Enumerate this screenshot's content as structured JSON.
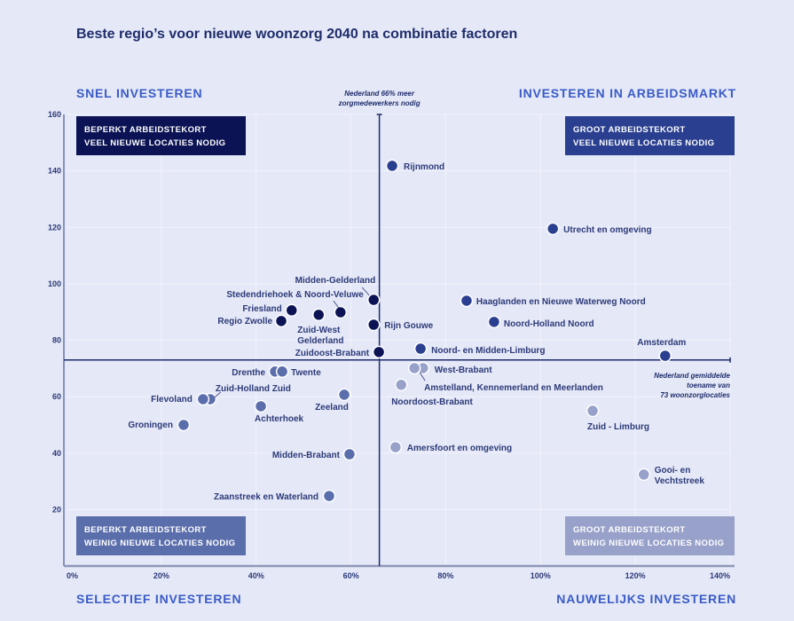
{
  "chart_data": {
    "type": "scatter",
    "title": "Beste regio’s voor nieuwe woonzorg 2040 na combinatie factoren",
    "xlim": [
      0,
      140
    ],
    "ylim": [
      0,
      160
    ],
    "x_ticks": [
      "0%",
      "20%",
      "40%",
      "60%",
      "80%",
      "100%",
      "120%",
      "140%"
    ],
    "x_tick_values": [
      0,
      20,
      40,
      60,
      80,
      100,
      120,
      140
    ],
    "y_ticks": [
      "20",
      "40",
      "60",
      "80",
      "100",
      "120",
      "140",
      "160"
    ],
    "y_tick_values": [
      20,
      40,
      60,
      80,
      100,
      120,
      140,
      160
    ],
    "grid": true,
    "reference_x": {
      "value": 66,
      "label_lines": [
        "Nederland 66% meer",
        "zorgmedewerkers nodig"
      ]
    },
    "reference_y": {
      "value": 73,
      "label_lines": [
        "Nederland gemiddelde",
        "toename van",
        "73 woonzorglocaties"
      ]
    },
    "corner_labels": {
      "top_left": "SNEL INVESTEREN",
      "top_right": "INVESTEREN IN ARBEIDSMARKT",
      "bottom_left": "SELECTIEF INVESTEREN",
      "bottom_right": "NAUWELIJKS INVESTEREN"
    },
    "quadrants": [
      {
        "id": "top-left",
        "lines": [
          "BEPERKT ARBEIDSTEKORT",
          "VEEL NIEUWE LOCATIES NODIG"
        ],
        "color": "#0b1354"
      },
      {
        "id": "top-right",
        "lines": [
          "GROOT ARBEIDSTEKORT",
          "VEEL NIEUWE LOCATIES NODIG"
        ],
        "color": "#2a3f8f"
      },
      {
        "id": "bottom-left",
        "lines": [
          "BEPERKT ARBEIDSTEKORT",
          "WEINIG NIEUWE LOCATIES NODIG"
        ],
        "color": "#5b6eac"
      },
      {
        "id": "bottom-right",
        "lines": [
          "GROOT ARBEIDSTEKORT",
          "WEINIG NIEUWE LOCATIES NODIG"
        ],
        "color": "#97a1c9"
      }
    ],
    "points": [
      {
        "name": "Rijnmond",
        "x": 68.7,
        "y": 141.8
      },
      {
        "name": "Utrecht en omgeving",
        "x": 102.6,
        "y": 119.5
      },
      {
        "name": "Midden-Gelderland",
        "x": 64.8,
        "y": 94.3
      },
      {
        "name": "Stedendriehoek & Noord-Veluwe",
        "x": 57.8,
        "y": 89.9
      },
      {
        "name": "Friesland",
        "x": 47.5,
        "y": 90.6
      },
      {
        "name": "Zuid-West Gelderland",
        "x": 53.2,
        "y": 89.0
      },
      {
        "name": "Regio Zwolle",
        "x": 45.3,
        "y": 86.8
      },
      {
        "name": "Rijn Gouwe",
        "x": 64.8,
        "y": 85.5
      },
      {
        "name": "Zuidoost-Brabant",
        "x": 65.9,
        "y": 75.8
      },
      {
        "name": "Haaglanden en Nieuwe Waterweg Noord",
        "x": 84.4,
        "y": 94.0
      },
      {
        "name": "Noord-Holland Noord",
        "x": 90.2,
        "y": 86.5
      },
      {
        "name": "Noord- en Midden-Limburg",
        "x": 74.7,
        "y": 77.0
      },
      {
        "name": "Amsterdam",
        "x": 126.3,
        "y": 74.5
      },
      {
        "name": "Drenthe",
        "x": 44.0,
        "y": 68.9
      },
      {
        "name": "Twente",
        "x": 45.5,
        "y": 68.9
      },
      {
        "name": "West-Brabant",
        "x": 75.2,
        "y": 70.1
      },
      {
        "name": "Amstelland, Kennemerland en Meerlanden",
        "x": 73.4,
        "y": 70.1
      },
      {
        "name": "Noordoost-Brabant",
        "x": 70.6,
        "y": 64.2
      },
      {
        "name": "Zeeland",
        "x": 58.6,
        "y": 60.7
      },
      {
        "name": "Zuid-Holland Zuid",
        "x": 30.3,
        "y": 59.1
      },
      {
        "name": "Flevoland",
        "x": 28.8,
        "y": 59.1
      },
      {
        "name": "Achterhoek",
        "x": 41.0,
        "y": 56.6
      },
      {
        "name": "Groningen",
        "x": 24.7,
        "y": 50.0
      },
      {
        "name": "Zuid - Limburg",
        "x": 111.0,
        "y": 55.0
      },
      {
        "name": "Amersfoort en omgeving",
        "x": 69.4,
        "y": 42.1
      },
      {
        "name": "Midden-Brabant",
        "x": 59.7,
        "y": 39.6
      },
      {
        "name": "Gooi- en Vechtstreek",
        "x": 121.8,
        "y": 32.4
      },
      {
        "name": "Zaanstreek en Waterland",
        "x": 55.4,
        "y": 24.8
      }
    ]
  }
}
